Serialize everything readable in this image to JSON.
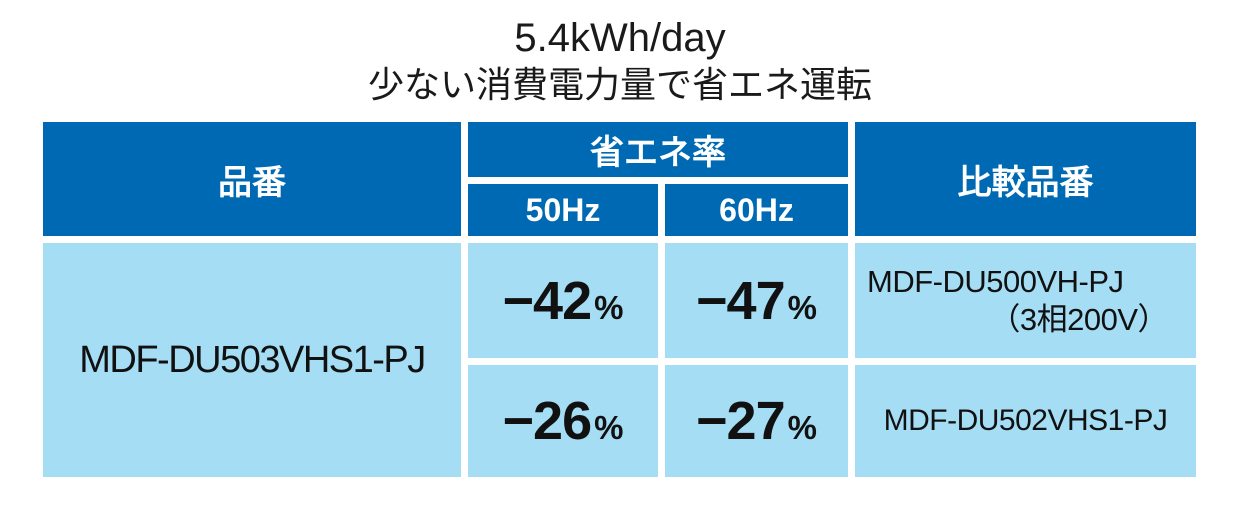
{
  "title": {
    "line1": "5.4kWh/day",
    "line2": "少ない消費電力量で省エネ運転"
  },
  "colors": {
    "header_bg": "#0069b4",
    "cell_bg": "#a5ddf5",
    "header_text": "#ffffff",
    "body_text": "#111111",
    "gap": "#ffffff"
  },
  "table": {
    "headers": {
      "product": "品番",
      "saving_rate": "省エネ率",
      "hz50": "50Hz",
      "hz60": "60Hz",
      "comparison": "比較品番"
    },
    "product_number": "MDF-DU503VHS1-PJ",
    "unit": "%",
    "rows": [
      {
        "hz50": "−42",
        "hz60": "−47",
        "unit": "%",
        "comparison_line1": "MDF-DU500VH-PJ",
        "comparison_line2": "（3相200V）"
      },
      {
        "hz50": "−26",
        "hz60": "−27",
        "unit": "%",
        "comparison_line1": "MDF-DU502VHS1-PJ",
        "comparison_line2": ""
      }
    ]
  }
}
